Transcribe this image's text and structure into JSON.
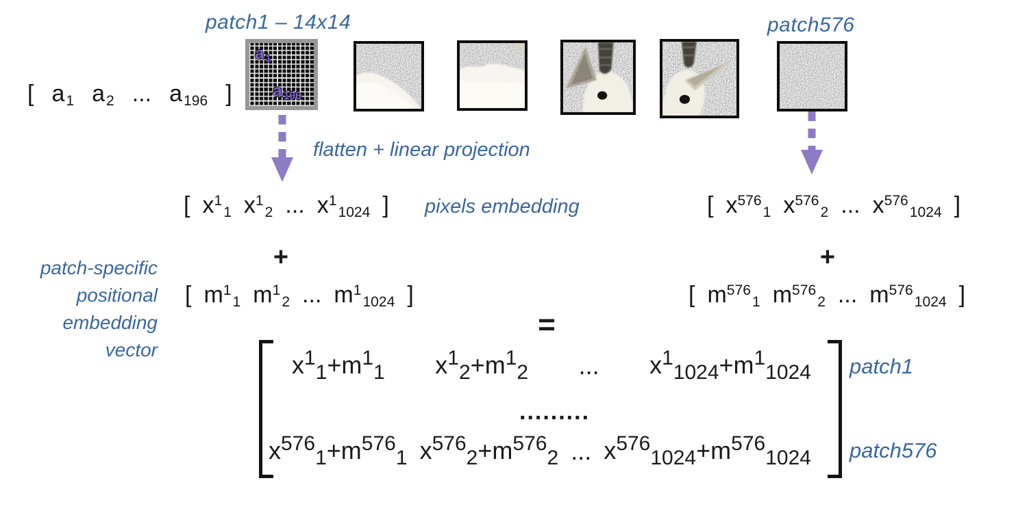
{
  "colors": {
    "accent_blue": "#38679f",
    "arrow_purple": "#8d7bc5",
    "grid_label_purple": "#7e63cc"
  },
  "top": {
    "patch1_title": "patch1 – 14x14",
    "patch576_title": "patch576",
    "grid_a1": [
      {
        "b": "a",
        "sb": "1"
      }
    ],
    "grid_a196": [
      {
        "b": "a",
        "sb": "196"
      }
    ],
    "input_vector": [
      {
        "b": "["
      },
      {
        "b": "a",
        "sb": "1"
      },
      {
        "b": "a",
        "sb": "2"
      },
      {
        "b": "..."
      },
      {
        "b": "a",
        "sb": "196"
      },
      {
        "b": "]"
      }
    ]
  },
  "flow": {
    "flatten_label": "flatten + linear projection",
    "pixels_embedding_label": "pixels embedding",
    "positional_label_lines": [
      "patch-specific",
      "positional",
      "embedding",
      "vector"
    ],
    "plus": "+",
    "equals": "="
  },
  "vectors": {
    "pixels_patch1": [
      {
        "b": "["
      },
      {
        "b": "x",
        "sp": "1",
        "sb": "1"
      },
      {
        "b": "x",
        "sp": "1",
        "sb": "2"
      },
      {
        "b": "..."
      },
      {
        "b": "x",
        "sp": "1",
        "sb": "1024"
      },
      {
        "b": "]"
      }
    ],
    "pixels_patch576": [
      {
        "b": "["
      },
      {
        "b": "x",
        "sp": "576",
        "sb": "1"
      },
      {
        "b": "x",
        "sp": "576",
        "sb": "2"
      },
      {
        "b": "..."
      },
      {
        "b": "x",
        "sp": "576",
        "sb": "1024"
      },
      {
        "b": "]"
      }
    ],
    "pos_patch1": [
      {
        "b": "["
      },
      {
        "b": "m",
        "sp": "1",
        "sb": "1"
      },
      {
        "b": "m",
        "sp": "1",
        "sb": "2"
      },
      {
        "b": "..."
      },
      {
        "b": "m",
        "sp": "1",
        "sb": "1024"
      },
      {
        "b": "]"
      }
    ],
    "pos_patch576": [
      {
        "b": "["
      },
      {
        "b": "m",
        "sp": "576",
        "sb": "1"
      },
      {
        "b": "m",
        "sp": "576",
        "sb": "2"
      },
      {
        "b": "..."
      },
      {
        "b": "m",
        "sp": "576",
        "sb": "1024"
      },
      {
        "b": "]"
      }
    ]
  },
  "matrix": {
    "row1_cells": [
      [
        {
          "b": "x",
          "sp": "1",
          "sb": "1"
        },
        {
          "b": "+"
        },
        {
          "b": "m",
          "sp": "1",
          "sb": "1"
        }
      ],
      [
        {
          "b": "x",
          "sp": "1",
          "sb": "2"
        },
        {
          "b": "+"
        },
        {
          "b": "m",
          "sp": "1",
          "sb": "2"
        }
      ],
      [
        {
          "b": "..."
        }
      ],
      [
        {
          "b": "x",
          "sp": "1",
          "sb": "1024"
        },
        {
          "b": "+"
        },
        {
          "b": "m",
          "sp": "1",
          "sb": "1024"
        }
      ]
    ],
    "dots": ".........",
    "row2_cells": [
      [
        {
          "b": "x",
          "sp": "576",
          "sb": "1"
        },
        {
          "b": "+"
        },
        {
          "b": "m",
          "sp": "576",
          "sb": "1"
        }
      ],
      [
        {
          "b": "x",
          "sp": "576",
          "sb": "2"
        },
        {
          "b": "+"
        },
        {
          "b": "m",
          "sp": "576",
          "sb": "2"
        }
      ],
      [
        {
          "b": "..."
        }
      ],
      [
        {
          "b": "x",
          "sp": "576",
          "sb": "1024"
        },
        {
          "b": "+"
        },
        {
          "b": "m",
          "sp": "576",
          "sb": "1024"
        }
      ]
    ],
    "row1_label": "patch1",
    "row2_label": "patch576"
  }
}
